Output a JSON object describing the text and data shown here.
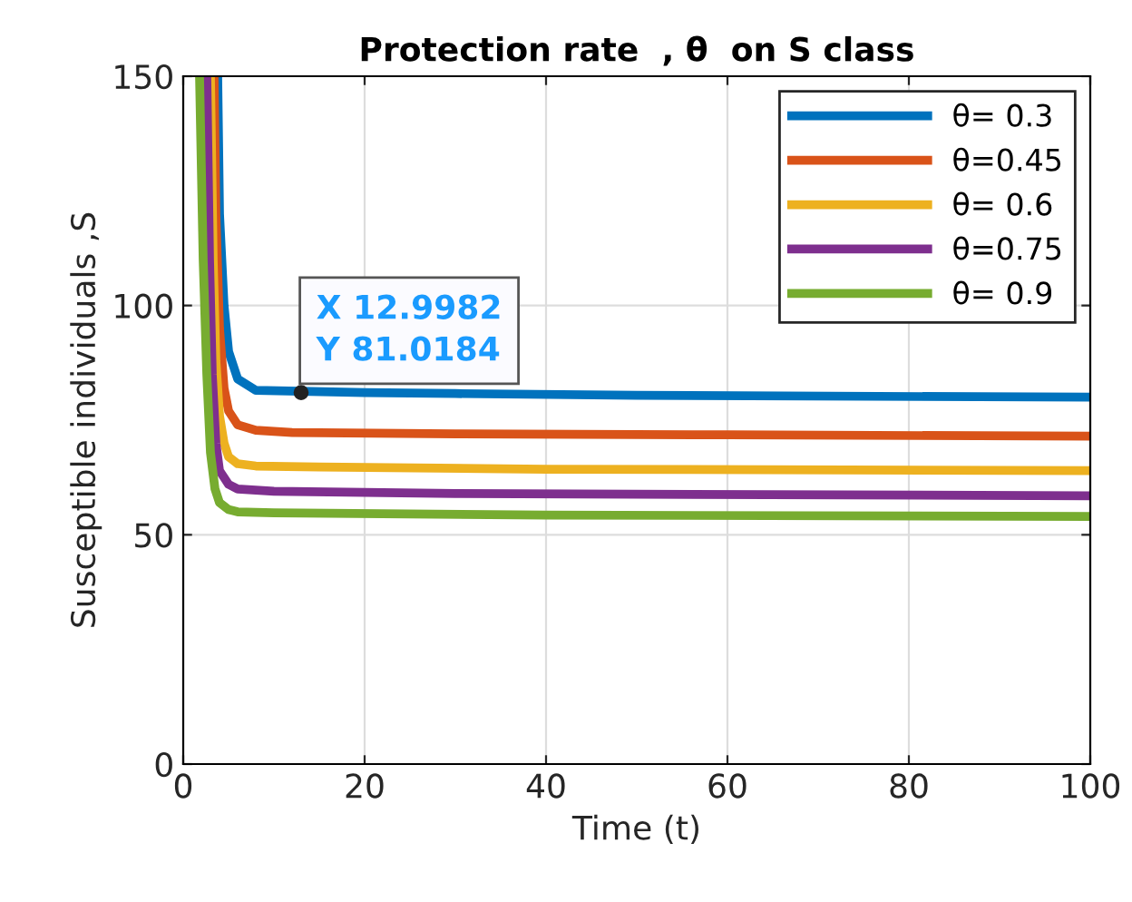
{
  "chart_data": {
    "type": "line",
    "title": "Protection rate  , θ  on S class",
    "xlabel": "Time (t)",
    "ylabel": "Susceptible individuals ,S",
    "xlim": [
      0,
      100
    ],
    "xticks": [
      0,
      20,
      40,
      60,
      80,
      100
    ],
    "ylim": [
      0,
      150
    ],
    "yticks": [
      0,
      50,
      100,
      150
    ],
    "grid": true,
    "legend": "top right",
    "line_style": "solid",
    "marker": "none",
    "series": [
      {
        "name": "θ= 0.3",
        "color": "#0072bd",
        "x": [
          3.8,
          4.0,
          4.5,
          5,
          6,
          8,
          20,
          30,
          50,
          100
        ],
        "values": [
          150,
          120,
          100,
          90,
          84,
          81.5,
          81,
          80.8,
          80.4,
          80.0
        ]
      },
      {
        "name": "θ=0.45",
        "color": "#d95319",
        "x": [
          3.4,
          3.6,
          4,
          4.5,
          5,
          6,
          8,
          12,
          30,
          60,
          100
        ],
        "values": [
          150,
          120,
          95,
          82,
          77,
          74,
          72.8,
          72.3,
          72,
          71.8,
          71.5
        ]
      },
      {
        "name": "θ= 0.6",
        "color": "#edb120",
        "x": [
          3.0,
          3.3,
          3.6,
          4,
          4.5,
          5,
          6,
          8,
          15,
          40,
          100
        ],
        "values": [
          150,
          110,
          88,
          76,
          70,
          67,
          65.5,
          65,
          64.8,
          64.3,
          64
        ]
      },
      {
        "name": "θ=0.75",
        "color": "#7e2f8e",
        "x": [
          2.6,
          2.9,
          3.2,
          3.6,
          4,
          5,
          6,
          10,
          30,
          100
        ],
        "values": [
          150,
          110,
          85,
          70,
          64,
          61,
          60,
          59.5,
          59,
          58.5
        ]
      },
      {
        "name": "θ= 0.9",
        "color": "#77ac30",
        "x": [
          1.8,
          2.2,
          2.6,
          3,
          3.5,
          4,
          5,
          6,
          10,
          40,
          100
        ],
        "values": [
          150,
          110,
          85,
          68,
          60,
          57,
          55.5,
          55,
          54.8,
          54.3,
          54
        ]
      }
    ],
    "annotations": [
      {
        "text": "X 12.9982\nY 81.0184",
        "x": 12.9982,
        "y": 81.0184
      }
    ]
  }
}
